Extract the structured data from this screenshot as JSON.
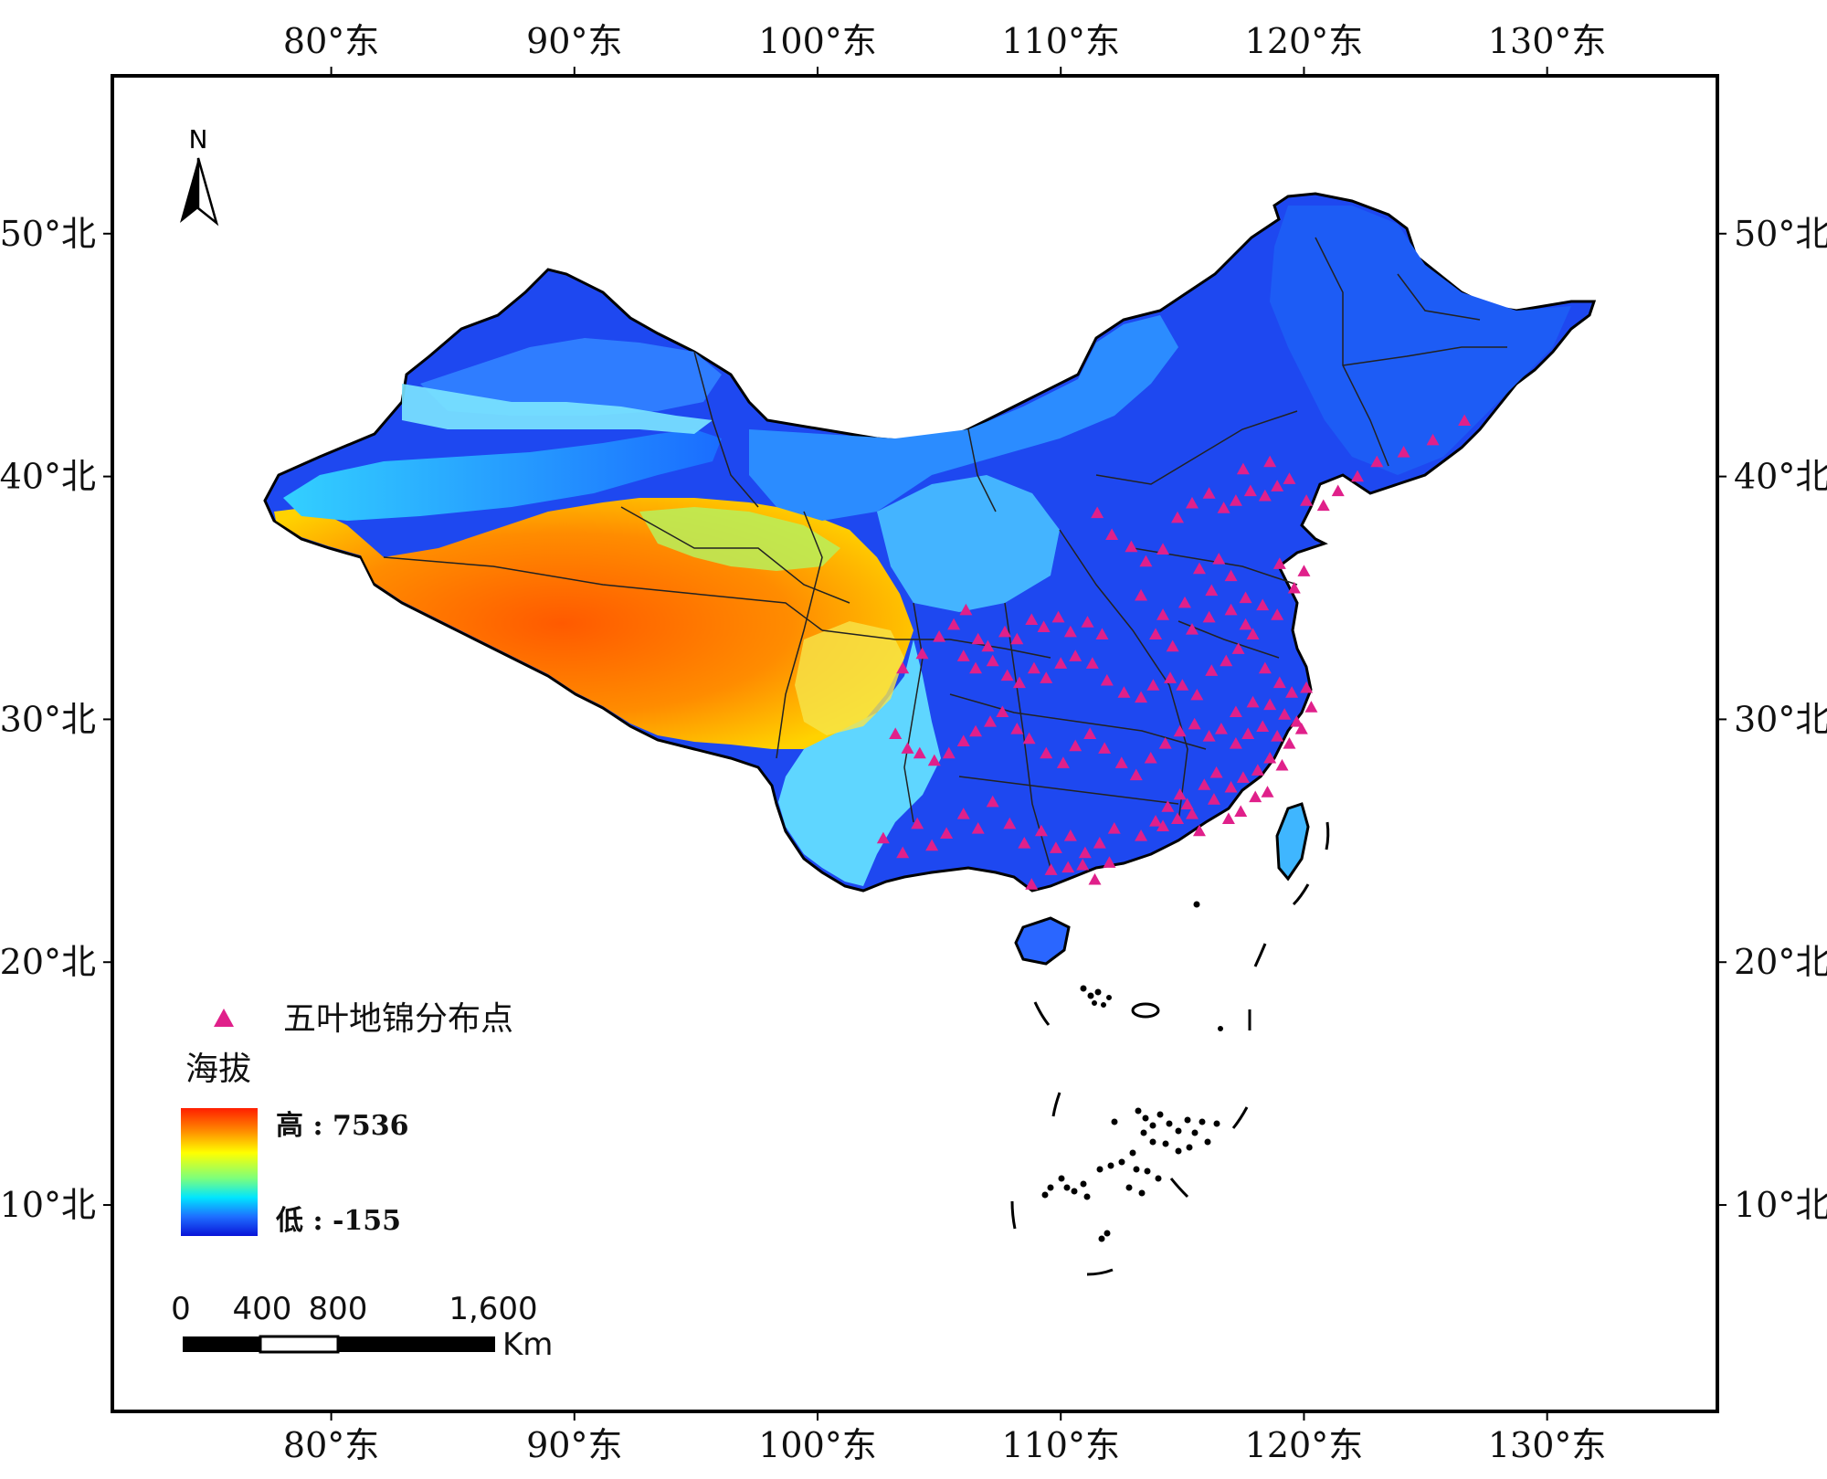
{
  "map": {
    "frame_extent": {
      "lon": [
        71,
        137
      ],
      "lat": [
        1.5,
        56.5
      ]
    },
    "graticule": {
      "top_labels": [
        "80°东",
        "90°东",
        "100°东",
        "110°东",
        "120°东",
        "130°东"
      ],
      "bottom_labels": [
        "80°东",
        "90°东",
        "100°东",
        "110°东",
        "120°东",
        "130°东"
      ],
      "left_labels": [
        "50°北",
        "40°北",
        "30°北",
        "20°北",
        "10°北"
      ],
      "right_labels": [
        "50°北",
        "40°北",
        "30°北",
        "20°北",
        "10°北"
      ],
      "lon_values": [
        80,
        90,
        100,
        110,
        120,
        130
      ],
      "lat_values": [
        50,
        40,
        30,
        20,
        10
      ]
    },
    "north_arrow": {
      "label": "N"
    },
    "legend": {
      "points_label": "五叶地锦分布点",
      "points_color": "#e0208a",
      "elevation_title": "海拔",
      "high_label": "高 : 7536",
      "low_label": "低 : -155",
      "ramp_colors": [
        "#ff1e00",
        "#ff8c00",
        "#ffff00",
        "#7cff7c",
        "#00e5ff",
        "#1e6eff",
        "#0a14d8"
      ]
    },
    "scale_bar": {
      "labels": [
        "0",
        "400",
        "800",
        "1,600"
      ],
      "unit": "Km",
      "distances_km": [
        0,
        400,
        800,
        1600
      ]
    },
    "distribution_points": [
      [
        103.5,
        32.1
      ],
      [
        104.3,
        32.7
      ],
      [
        105.0,
        33.4
      ],
      [
        105.6,
        33.9
      ],
      [
        106.1,
        34.5
      ],
      [
        106.6,
        33.3
      ],
      [
        107.0,
        33.0
      ],
      [
        107.7,
        33.6
      ],
      [
        108.2,
        33.3
      ],
      [
        108.8,
        34.1
      ],
      [
        109.3,
        33.8
      ],
      [
        109.9,
        34.2
      ],
      [
        110.4,
        33.6
      ],
      [
        111.1,
        34.0
      ],
      [
        111.7,
        33.5
      ],
      [
        106.0,
        32.6
      ],
      [
        106.5,
        32.1
      ],
      [
        107.2,
        32.4
      ],
      [
        107.8,
        31.8
      ],
      [
        108.3,
        31.5
      ],
      [
        108.9,
        32.1
      ],
      [
        109.4,
        31.7
      ],
      [
        110.0,
        32.3
      ],
      [
        110.6,
        32.6
      ],
      [
        111.3,
        32.3
      ],
      [
        111.9,
        31.6
      ],
      [
        112.6,
        31.1
      ],
      [
        113.3,
        30.9
      ],
      [
        113.8,
        31.4
      ],
      [
        114.5,
        31.7
      ],
      [
        115.0,
        31.4
      ],
      [
        115.6,
        31.0
      ],
      [
        116.2,
        32.0
      ],
      [
        116.8,
        32.4
      ],
      [
        117.3,
        32.9
      ],
      [
        117.9,
        33.5
      ],
      [
        118.4,
        32.1
      ],
      [
        119.0,
        31.5
      ],
      [
        119.5,
        31.1
      ],
      [
        120.1,
        31.3
      ],
      [
        103.2,
        29.4
      ],
      [
        103.7,
        28.8
      ],
      [
        104.2,
        28.6
      ],
      [
        104.8,
        28.3
      ],
      [
        105.4,
        28.6
      ],
      [
        106.0,
        29.1
      ],
      [
        106.5,
        29.5
      ],
      [
        107.1,
        29.9
      ],
      [
        107.6,
        30.3
      ],
      [
        108.2,
        29.6
      ],
      [
        108.7,
        29.2
      ],
      [
        109.4,
        28.6
      ],
      [
        110.1,
        28.2
      ],
      [
        110.6,
        28.9
      ],
      [
        111.2,
        29.4
      ],
      [
        111.8,
        28.8
      ],
      [
        112.5,
        28.2
      ],
      [
        113.1,
        27.7
      ],
      [
        113.7,
        28.4
      ],
      [
        114.3,
        29.0
      ],
      [
        114.9,
        29.5
      ],
      [
        115.5,
        29.8
      ],
      [
        116.1,
        29.3
      ],
      [
        116.6,
        29.6
      ],
      [
        117.2,
        29.0
      ],
      [
        117.7,
        29.4
      ],
      [
        118.3,
        29.7
      ],
      [
        118.9,
        29.3
      ],
      [
        119.4,
        29.0
      ],
      [
        119.9,
        29.6
      ],
      [
        113.3,
        25.2
      ],
      [
        113.9,
        25.8
      ],
      [
        114.4,
        26.4
      ],
      [
        114.9,
        26.9
      ],
      [
        115.4,
        26.1
      ],
      [
        115.9,
        27.3
      ],
      [
        116.4,
        27.8
      ],
      [
        117.0,
        27.2
      ],
      [
        117.5,
        27.6
      ],
      [
        118.1,
        27.9
      ],
      [
        118.6,
        28.4
      ],
      [
        119.1,
        28.1
      ],
      [
        114.2,
        25.6
      ],
      [
        114.8,
        25.9
      ],
      [
        115.2,
        26.5
      ],
      [
        115.7,
        25.4
      ],
      [
        116.3,
        26.7
      ],
      [
        116.9,
        25.9
      ],
      [
        117.4,
        26.2
      ],
      [
        118.0,
        26.8
      ],
      [
        118.5,
        27.0
      ],
      [
        102.7,
        25.1
      ],
      [
        103.5,
        24.5
      ],
      [
        104.1,
        25.7
      ],
      [
        104.7,
        24.8
      ],
      [
        105.3,
        25.3
      ],
      [
        106.0,
        26.1
      ],
      [
        106.6,
        25.5
      ],
      [
        107.2,
        26.6
      ],
      [
        107.9,
        25.7
      ],
      [
        108.5,
        24.9
      ],
      [
        109.2,
        25.4
      ],
      [
        109.8,
        24.7
      ],
      [
        110.4,
        25.2
      ],
      [
        111.0,
        24.5
      ],
      [
        111.6,
        24.9
      ],
      [
        112.2,
        25.5
      ],
      [
        108.8,
        23.2
      ],
      [
        109.6,
        23.8
      ],
      [
        110.3,
        23.9
      ],
      [
        110.9,
        24.0
      ],
      [
        111.4,
        23.4
      ],
      [
        112.0,
        24.1
      ],
      [
        111.5,
        38.5
      ],
      [
        112.1,
        37.6
      ],
      [
        112.9,
        37.1
      ],
      [
        113.5,
        36.5
      ],
      [
        114.2,
        37.0
      ],
      [
        114.8,
        38.3
      ],
      [
        115.4,
        38.9
      ],
      [
        116.1,
        39.3
      ],
      [
        116.7,
        38.7
      ],
      [
        117.2,
        39.0
      ],
      [
        117.8,
        39.4
      ],
      [
        118.4,
        39.2
      ],
      [
        118.9,
        39.6
      ],
      [
        119.4,
        39.9
      ],
      [
        120.1,
        39.0
      ],
      [
        120.8,
        38.8
      ],
      [
        121.4,
        39.4
      ],
      [
        122.2,
        40.0
      ],
      [
        123.0,
        40.6
      ],
      [
        124.1,
        41.0
      ],
      [
        125.3,
        41.5
      ],
      [
        126.6,
        42.3
      ],
      [
        117.5,
        40.3
      ],
      [
        118.6,
        40.6
      ],
      [
        114.2,
        34.3
      ],
      [
        115.1,
        34.8
      ],
      [
        116.2,
        35.3
      ],
      [
        117.0,
        35.9
      ],
      [
        117.6,
        35.0
      ],
      [
        118.3,
        34.7
      ],
      [
        118.9,
        34.3
      ],
      [
        119.6,
        35.4
      ],
      [
        120.0,
        36.1
      ],
      [
        119.0,
        36.4
      ],
      [
        116.5,
        36.6
      ],
      [
        115.7,
        36.2
      ],
      [
        113.3,
        35.1
      ],
      [
        113.9,
        33.5
      ],
      [
        114.6,
        33.0
      ],
      [
        115.4,
        33.7
      ],
      [
        116.1,
        34.2
      ],
      [
        117.0,
        34.5
      ],
      [
        117.6,
        33.9
      ],
      [
        118.6,
        30.6
      ],
      [
        119.2,
        30.2
      ],
      [
        120.3,
        30.5
      ],
      [
        119.7,
        29.9
      ],
      [
        117.9,
        30.7
      ],
      [
        117.2,
        30.3
      ]
    ]
  }
}
